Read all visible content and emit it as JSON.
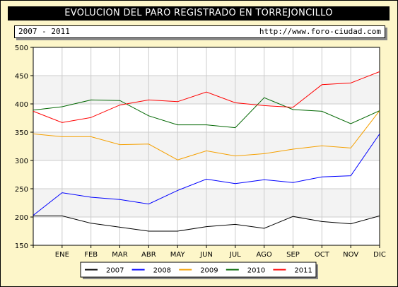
{
  "header": {
    "title": "EVOLUCION DEL PARO REGISTRADO EN TORREJONCILLO",
    "period": "2007 - 2011",
    "website": "http://www.foro-ciudad.com"
  },
  "colors": {
    "background": "#fdf6c9",
    "title_bar": "#000000",
    "plot_band": "#f3f3f3",
    "grid": "#cccccc"
  },
  "chart_data": {
    "type": "line",
    "title": "EVOLUCION DEL PARO REGISTRADO EN TORREJONCILLO",
    "xlabel": "",
    "ylabel": "",
    "categories": [
      "",
      "ENE",
      "FEB",
      "MAR",
      "ABR",
      "MAY",
      "JUN",
      "JUL",
      "AGO",
      "SEP",
      "OCT",
      "NOV",
      "DIC"
    ],
    "ylim": [
      150,
      500
    ],
    "yticks": [
      150,
      200,
      250,
      300,
      350,
      400,
      450,
      500
    ],
    "grid": true,
    "legend_position": "bottom",
    "series": [
      {
        "name": "2007",
        "color": "#000000",
        "values": [
          202,
          202,
          189,
          182,
          175,
          175,
          183,
          187,
          180,
          201,
          192,
          188,
          202
        ]
      },
      {
        "name": "2008",
        "color": "#0000ff",
        "values": [
          203,
          243,
          235,
          231,
          223,
          247,
          267,
          259,
          266,
          261,
          271,
          273,
          347
        ]
      },
      {
        "name": "2009",
        "color": "#f5a000",
        "values": [
          347,
          342,
          342,
          328,
          329,
          301,
          317,
          308,
          312,
          320,
          326,
          322,
          388
        ]
      },
      {
        "name": "2010",
        "color": "#006600",
        "values": [
          389,
          395,
          407,
          406,
          379,
          363,
          363,
          358,
          411,
          390,
          387,
          365,
          388
        ]
      },
      {
        "name": "2011",
        "color": "#ff0000",
        "values": [
          387,
          367,
          376,
          398,
          407,
          404,
          421,
          402,
          397,
          394,
          434,
          437,
          457
        ]
      }
    ]
  }
}
